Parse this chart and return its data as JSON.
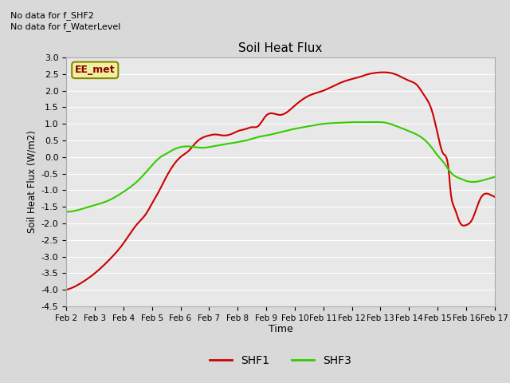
{
  "title": "Soil Heat Flux",
  "ylabel": "Soil Heat Flux (W/m2)",
  "xlabel": "Time",
  "ylim": [
    -4.5,
    3.0
  ],
  "background_color": "#d9d9d9",
  "plot_bg_color": "#e8e8e8",
  "no_data_text1": "No data for f_SHF2",
  "no_data_text2": "No data for f_WaterLevel",
  "box_label": "EE_met",
  "legend_labels": [
    "SHF1",
    "SHF3"
  ],
  "legend_colors": [
    "#cc0000",
    "#33cc00"
  ],
  "x_tick_labels": [
    "Feb 2",
    "Feb 3",
    "Feb 4",
    "Feb 5",
    "Feb 6",
    "Feb 7",
    "Feb 8",
    "Feb 9",
    "Feb 10",
    "Feb 11",
    "Feb 12",
    "Feb 13",
    "Feb 14",
    "Feb 15",
    "Feb 16",
    "Feb 17"
  ],
  "shf1_knots_x": [
    0,
    0.3,
    0.6,
    1.0,
    1.5,
    2.0,
    2.5,
    2.8,
    3.0,
    3.2,
    3.5,
    4.0,
    4.3,
    4.5,
    4.7,
    5.0,
    5.2,
    5.5,
    5.8,
    6.0,
    6.3,
    6.5,
    6.7,
    7.0,
    7.5,
    8.0,
    8.5,
    9.0,
    9.5,
    10.0,
    10.3,
    10.5,
    10.7,
    11.0,
    11.2,
    11.5,
    12.0,
    12.3,
    12.5,
    12.8,
    13.0,
    13.2,
    13.4,
    13.45,
    13.5,
    13.6,
    13.7,
    13.8,
    14.0,
    14.2,
    14.5,
    14.7,
    15.0
  ],
  "shf1_knots_y": [
    -4.0,
    -3.9,
    -3.75,
    -3.5,
    -3.1,
    -2.6,
    -2.0,
    -1.7,
    -1.4,
    -1.1,
    -0.6,
    0.0,
    0.2,
    0.4,
    0.55,
    0.65,
    0.68,
    0.65,
    0.7,
    0.78,
    0.85,
    0.9,
    0.92,
    1.25,
    1.27,
    1.55,
    1.85,
    2.0,
    2.2,
    2.35,
    2.42,
    2.48,
    2.52,
    2.55,
    2.55,
    2.5,
    2.3,
    2.15,
    1.9,
    1.4,
    0.7,
    0.1,
    -0.5,
    -1.0,
    -1.3,
    -1.55,
    -1.8,
    -2.0,
    -2.05,
    -1.9,
    -1.25,
    -1.1,
    -1.2
  ],
  "shf3_knots_x": [
    0,
    0.3,
    0.6,
    1.0,
    1.5,
    2.0,
    2.5,
    3.0,
    3.3,
    3.5,
    3.7,
    4.0,
    4.3,
    4.5,
    4.7,
    5.0,
    5.3,
    5.5,
    5.8,
    6.0,
    6.3,
    6.5,
    6.8,
    7.0,
    7.5,
    8.0,
    8.5,
    9.0,
    9.5,
    10.0,
    10.5,
    11.0,
    11.2,
    11.5,
    12.0,
    12.5,
    12.8,
    13.0,
    13.2,
    13.5,
    13.8,
    14.0,
    14.5,
    15.0
  ],
  "shf3_knots_y": [
    -1.65,
    -1.62,
    -1.55,
    -1.45,
    -1.3,
    -1.05,
    -0.72,
    -0.25,
    0.0,
    0.1,
    0.2,
    0.3,
    0.32,
    0.3,
    0.28,
    0.3,
    0.35,
    0.38,
    0.42,
    0.45,
    0.5,
    0.55,
    0.62,
    0.65,
    0.75,
    0.85,
    0.93,
    1.0,
    1.03,
    1.05,
    1.05,
    1.05,
    1.03,
    0.95,
    0.78,
    0.55,
    0.28,
    0.05,
    -0.15,
    -0.5,
    -0.65,
    -0.72,
    -0.72,
    -0.6
  ]
}
